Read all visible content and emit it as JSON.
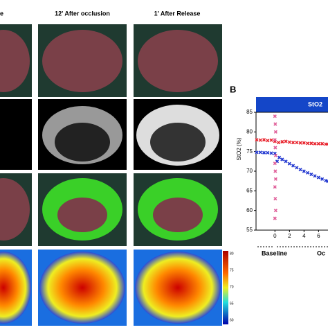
{
  "figure": {
    "column_headers": [
      "e",
      "12' After occlusion",
      "1' After Release"
    ],
    "panel_label": "B",
    "colorbar": {
      "ticks": [
        80,
        75,
        70,
        65,
        60
      ]
    }
  },
  "chart_data": {
    "type": "line",
    "title": "StO2",
    "ylabel": "StO2 (%)",
    "annotations": [
      "Baseline",
      "Oc"
    ],
    "xlim": [
      -2.6,
      7.3
    ],
    "xticks": [
      0,
      2,
      4,
      6
    ],
    "ylim": [
      55,
      85
    ],
    "yticks": [
      85,
      80,
      75,
      70,
      65,
      60,
      55
    ],
    "series": [
      {
        "color": "#e8202a",
        "x": [
          -2.5,
          -2,
          -1.5,
          -1,
          -0.5,
          0,
          0.5,
          1,
          1.5,
          2,
          2.5,
          3,
          3.5,
          4,
          4.5,
          5,
          5.5,
          6,
          6.5,
          7,
          7.3
        ],
        "values": [
          78,
          77.9,
          78,
          77.8,
          77.9,
          77.6,
          77.3,
          77.5,
          77.6,
          77.4,
          77.3,
          77.3,
          77.2,
          77.2,
          77.1,
          77.1,
          77,
          77,
          77,
          76.9,
          76.9
        ]
      },
      {
        "color": "#2036d0",
        "x": [
          -2.5,
          -2,
          -1.5,
          -1,
          -0.5,
          0,
          0.3,
          0.6,
          1,
          1.5,
          2,
          2.5,
          3,
          3.5,
          4,
          4.5,
          5,
          5.5,
          6,
          6.5,
          7,
          7.3
        ],
        "values": [
          74.8,
          74.8,
          74.7,
          74.7,
          74.6,
          74.5,
          72.5,
          73.5,
          73,
          72.5,
          71.9,
          71.4,
          70.9,
          70.4,
          70,
          69.6,
          69.2,
          68.8,
          68.4,
          68,
          67.6,
          67.4
        ]
      },
      {
        "color": "#e0609a",
        "x": [
          0,
          0.05,
          0.1,
          0,
          0.05,
          0.1,
          0,
          0.05,
          0.1,
          0,
          0.05,
          0.1,
          0
        ],
        "values": [
          84,
          82,
          80,
          78,
          76,
          74,
          72,
          70,
          68,
          66,
          63,
          60,
          58
        ]
      }
    ]
  }
}
